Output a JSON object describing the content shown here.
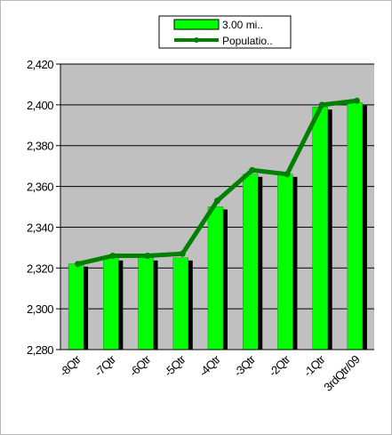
{
  "chart_data": {
    "type": "bar",
    "categories": [
      "-8Qtr",
      "-7Qtr",
      "-6Qtr",
      "-5Qtr",
      "-4Qtr",
      "-3Qtr",
      "-2Qtr",
      "-1Qtr",
      "3rdQtr/09"
    ],
    "series": [
      {
        "name": "3.00 mi..",
        "kind": "bar",
        "color": "#00ff00",
        "shadow_color": "#000000",
        "values": [
          2322,
          2325,
          2325,
          2325,
          2350,
          2366,
          2366,
          2399,
          2401
        ]
      },
      {
        "name": "Populatio..",
        "kind": "line",
        "color": "#008000",
        "values": [
          2322,
          2326,
          2326,
          2327,
          2353,
          2368,
          2366,
          2400,
          2402
        ]
      }
    ],
    "y_ticks": [
      "2,280",
      "2,300",
      "2,320",
      "2,340",
      "2,360",
      "2,380",
      "2,400",
      "2,420"
    ],
    "ylim": [
      2280,
      2420
    ],
    "grid": true,
    "legend_position": "top",
    "plot_background": "#c0c0c0"
  }
}
